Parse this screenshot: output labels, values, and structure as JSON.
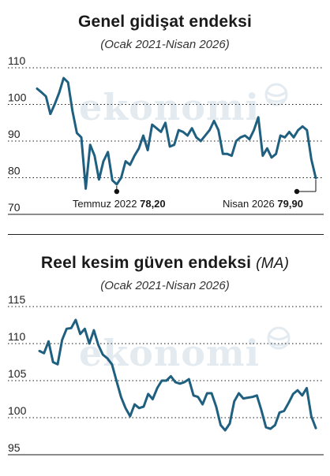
{
  "colors": {
    "line": "#1f5f7f",
    "grid": "#1a1a1a",
    "watermark": "#e3ebf1"
  },
  "watermark": "ekonomi",
  "chart_data": [
    {
      "type": "line",
      "title": "Genel gidişat endeksi",
      "subtitle": "(Ocak 2021-Nisan 2026)",
      "ylim": [
        70,
        110
      ],
      "yticks": [
        70,
        80,
        90,
        100,
        110
      ],
      "grid": true,
      "series": [
        {
          "values": [
            104.3,
            103.3,
            102.2,
            97.4,
            100.1,
            103.2,
            107.2,
            106.0,
            98.2,
            92.2,
            91.0,
            77.0,
            89.0,
            86.0,
            79.5,
            84.5,
            87.0,
            79.3,
            78.2,
            80.0,
            84.5,
            83.5,
            86.0,
            88.0,
            91.5,
            87.5,
            94.5,
            93.5,
            92.5,
            95.0,
            88.5,
            89.0,
            93.0,
            92.5,
            91.5,
            93.5,
            91.0,
            90.0,
            91.5,
            93.0,
            95.5,
            93.0,
            86.5,
            86.5,
            86.0,
            90.0,
            91.0,
            91.5,
            90.5,
            93.0,
            96.5,
            86.0,
            88.0,
            85.5,
            86.5,
            91.5,
            91.0,
            92.5,
            91.0,
            93.0,
            94.0,
            93.0,
            85.0,
            79.9
          ]
        }
      ],
      "annotations": [
        {
          "label": "Temmuz 2022",
          "value": "78,20",
          "index": 18
        },
        {
          "label": "Nisan 2026",
          "value": "79,90",
          "index": 63
        }
      ]
    },
    {
      "type": "line",
      "title": "Reel kesim güven endeksi",
      "title_suffix": "(MA)",
      "subtitle": "(Ocak 2021-Nisan 2026)",
      "ylim": [
        95,
        115
      ],
      "yticks": [
        95,
        100,
        105,
        110,
        115
      ],
      "grid": true,
      "series": [
        {
          "values": [
            109.0,
            108.7,
            110.3,
            107.5,
            107.2,
            110.5,
            112.0,
            112.1,
            113.2,
            111.3,
            112.0,
            110.0,
            111.8,
            109.8,
            108.5,
            108.0,
            107.2,
            105.0,
            102.8,
            101.3,
            100.2,
            101.8,
            101.3,
            101.5,
            103.2,
            102.5,
            104.0,
            105.0,
            105.0,
            105.6,
            104.8,
            104.6,
            104.8,
            105.2,
            103.0,
            102.8,
            101.8,
            103.3,
            103.3,
            101.5,
            99.0,
            98.3,
            99.2,
            102.2,
            103.3,
            102.6,
            102.7,
            102.8,
            103.0,
            101.0,
            98.7,
            98.5,
            99.0,
            100.7,
            100.9,
            102.0,
            103.2,
            103.7,
            103.0,
            104.0,
            100.2,
            98.6
          ]
        }
      ]
    }
  ]
}
